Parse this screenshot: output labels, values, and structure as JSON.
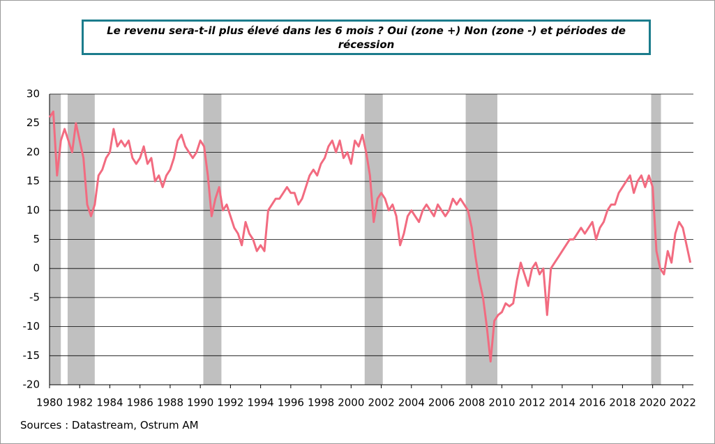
{
  "chart_data": {
    "type": "line",
    "title": "Le revenu sera-t-il plus élevé dans les 6 mois ? Oui (zone +) Non (zone -) et périodes de récession",
    "source": "Sources :  Datastream, Ostrum AM",
    "xlim": [
      1980,
      2022.7
    ],
    "ylim": [
      -20,
      30
    ],
    "xticks": [
      1980,
      1982,
      1984,
      1986,
      1988,
      1990,
      1992,
      1994,
      1996,
      1998,
      2000,
      2002,
      2004,
      2006,
      2008,
      2010,
      2012,
      2014,
      2016,
      2018,
      2020,
      2022
    ],
    "yticks": [
      -20,
      -15,
      -10,
      -5,
      0,
      5,
      10,
      15,
      20,
      25,
      30
    ],
    "grid": true,
    "recession_color": "#c0c0c0",
    "recessions": [
      [
        1980.0,
        1980.75
      ],
      [
        1981.2,
        1983.0
      ],
      [
        1990.2,
        1991.4
      ],
      [
        2000.9,
        2002.1
      ],
      [
        2007.6,
        2009.7
      ],
      [
        2019.9,
        2020.55
      ]
    ],
    "x": [
      1980,
      1980.25,
      1980.5,
      1980.75,
      1981,
      1981.25,
      1981.5,
      1981.75,
      1982,
      1982.25,
      1982.5,
      1982.75,
      1983,
      1983.25,
      1983.5,
      1983.75,
      1984,
      1984.25,
      1984.5,
      1984.75,
      1985,
      1985.25,
      1985.5,
      1985.75,
      1986,
      1986.25,
      1986.5,
      1986.75,
      1987,
      1987.25,
      1987.5,
      1987.75,
      1988,
      1988.25,
      1988.5,
      1988.75,
      1989,
      1989.25,
      1989.5,
      1989.75,
      1990,
      1990.25,
      1990.5,
      1990.75,
      1991,
      1991.25,
      1991.5,
      1991.75,
      1992,
      1992.25,
      1992.5,
      1992.75,
      1993,
      1993.25,
      1993.5,
      1993.75,
      1994,
      1994.25,
      1994.5,
      1994.75,
      1995,
      1995.25,
      1995.5,
      1995.75,
      1996,
      1996.25,
      1996.5,
      1996.75,
      1997,
      1997.25,
      1997.5,
      1997.75,
      1998,
      1998.25,
      1998.5,
      1998.75,
      1999,
      1999.25,
      1999.5,
      1999.75,
      2000,
      2000.25,
      2000.5,
      2000.75,
      2001,
      2001.25,
      2001.5,
      2001.75,
      2002,
      2002.25,
      2002.5,
      2002.75,
      2003,
      2003.25,
      2003.5,
      2003.75,
      2004,
      2004.25,
      2004.5,
      2004.75,
      2005,
      2005.25,
      2005.5,
      2005.75,
      2006,
      2006.25,
      2006.5,
      2006.75,
      2007,
      2007.25,
      2007.5,
      2007.75,
      2008,
      2008.25,
      2008.5,
      2008.75,
      2009,
      2009.25,
      2009.5,
      2009.75,
      2010,
      2010.25,
      2010.5,
      2010.75,
      2011,
      2011.25,
      2011.5,
      2011.75,
      2012,
      2012.25,
      2012.5,
      2012.75,
      2013,
      2013.25,
      2013.5,
      2013.75,
      2014,
      2014.25,
      2014.5,
      2014.75,
      2015,
      2015.25,
      2015.5,
      2015.75,
      2016,
      2016.25,
      2016.5,
      2016.75,
      2017,
      2017.25,
      2017.5,
      2017.75,
      2018,
      2018.25,
      2018.5,
      2018.75,
      2019,
      2019.25,
      2019.5,
      2019.75,
      2020,
      2020.25,
      2020.5,
      2020.75,
      2021,
      2021.25,
      2021.5,
      2021.75,
      2022,
      2022.25,
      2022.5
    ],
    "series": [
      {
        "color": "#f26b80",
        "values": [
          26,
          27,
          16,
          22,
          24,
          22,
          20,
          25,
          22,
          19,
          11,
          9,
          11,
          16,
          17,
          19,
          20,
          24,
          21,
          22,
          21,
          22,
          19,
          18,
          19,
          21,
          18,
          19,
          15,
          16,
          14,
          16,
          17,
          19,
          22,
          23,
          21,
          20,
          19,
          20,
          22,
          21,
          16,
          9,
          12,
          14,
          10,
          11,
          9,
          7,
          6,
          4,
          8,
          6,
          5,
          3,
          4,
          3,
          10,
          11,
          12,
          12,
          13,
          14,
          13,
          13,
          11,
          12,
          14,
          16,
          17,
          16,
          18,
          19,
          21,
          22,
          20,
          22,
          19,
          20,
          18,
          22,
          21,
          23,
          20,
          16,
          8,
          12,
          13,
          12,
          10,
          11,
          9,
          4,
          6,
          9,
          10,
          9,
          8,
          10,
          11,
          10,
          9,
          11,
          10,
          9,
          10,
          12,
          11,
          12,
          11,
          10,
          7,
          2,
          -2,
          -5,
          -10,
          -16,
          -9,
          -8,
          -7.5,
          -6,
          -6.5,
          -6,
          -2,
          1,
          -1,
          -3,
          0,
          1,
          -1,
          0,
          -8,
          0,
          1,
          2,
          3,
          4,
          5,
          5,
          6,
          7,
          6,
          7,
          8,
          5,
          7,
          8,
          10,
          11,
          11,
          13,
          14,
          15,
          16,
          13,
          15,
          16,
          14,
          16,
          14,
          3,
          0,
          -1,
          3,
          1,
          6,
          8,
          7,
          4,
          1
        ]
      }
    ]
  }
}
